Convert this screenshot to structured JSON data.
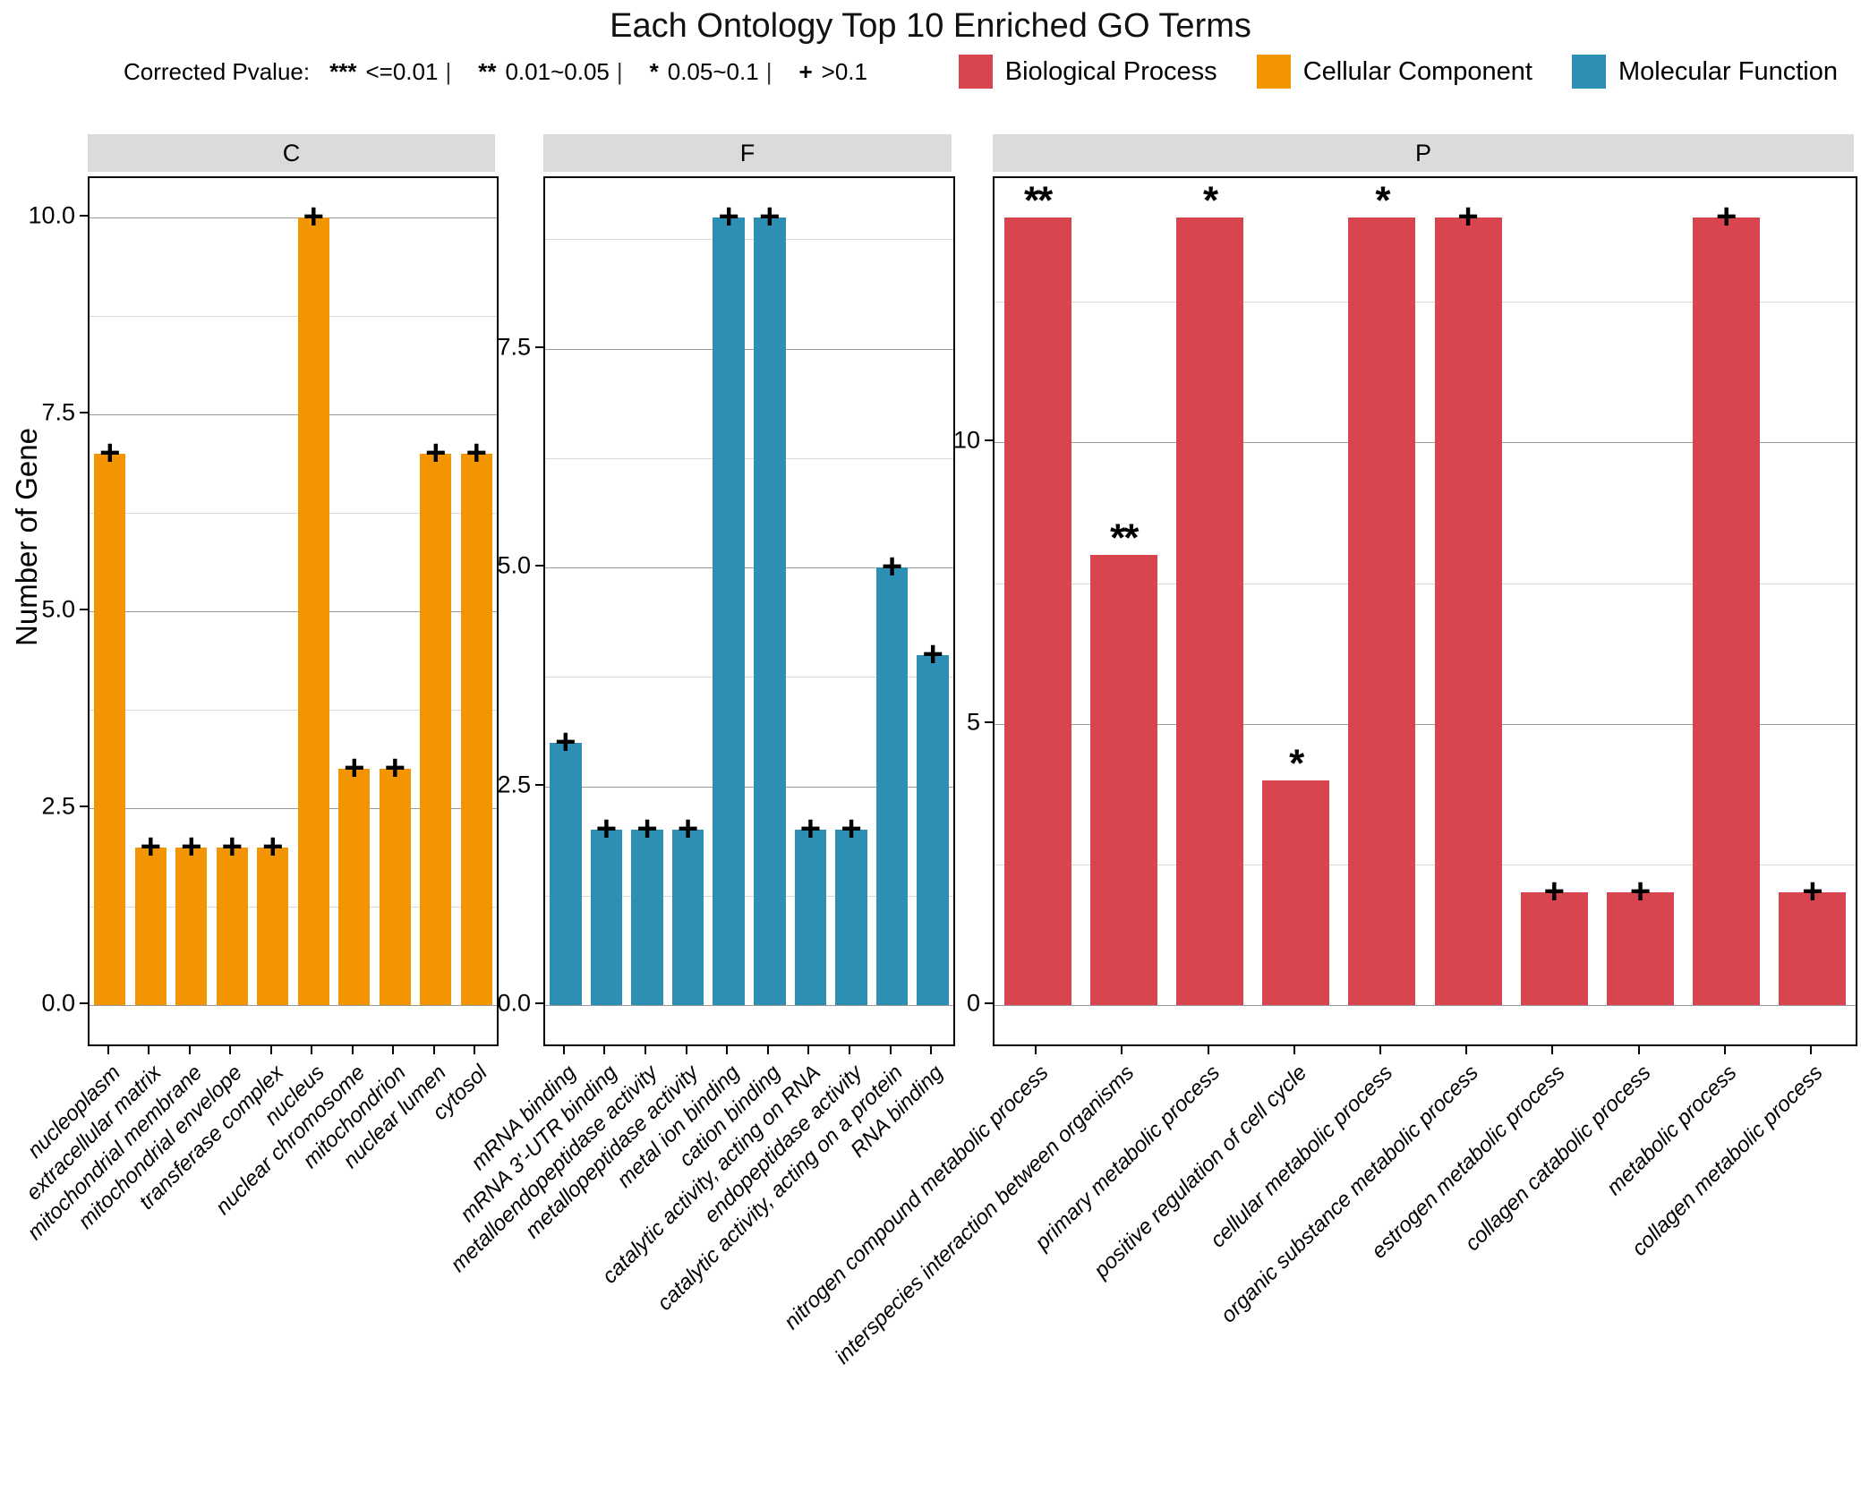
{
  "title": "Each Ontology Top 10 Enriched GO Terms",
  "y_axis_title": "Number of Gene",
  "pvalue_legend": {
    "prefix": "Corrected Pvalue:",
    "separator": "|",
    "items": [
      {
        "symbol": "***",
        "range": "<=0.01"
      },
      {
        "symbol": "**",
        "range": "0.01~0.05"
      },
      {
        "symbol": "*",
        "range": "0.05~0.1"
      },
      {
        "symbol": "+",
        "range": ">0.1"
      }
    ]
  },
  "legend": {
    "position": "top-right",
    "items": [
      {
        "label": "Biological Process",
        "color": "#D9454E"
      },
      {
        "label": "Cellular Component",
        "color": "#F39403"
      },
      {
        "label": "Molecular Function",
        "color": "#2E8FB5"
      }
    ]
  },
  "chart_data": {
    "type": "bar",
    "title": "Each Ontology Top 10 Enriched GO Terms",
    "xlabel": "",
    "ylabel": "Number of Gene",
    "grid": true,
    "significance_note": "markers above bars encode corrected p-value",
    "facets": [
      {
        "label": "C",
        "category": "Cellular Component",
        "color": "#F39403",
        "ymax": 10,
        "ticks": [
          {
            "v": 0,
            "t": "0.0"
          },
          {
            "v": 2.5,
            "t": "2.5"
          },
          {
            "v": 5,
            "t": "5.0"
          },
          {
            "v": 7.5,
            "t": "7.5"
          },
          {
            "v": 10,
            "t": "10.0"
          }
        ],
        "bars": [
          {
            "term": "nucleoplasm",
            "value": 7,
            "sig": "+"
          },
          {
            "term": "extracellular matrix",
            "value": 2,
            "sig": "+"
          },
          {
            "term": "mitochondrial membrane",
            "value": 2,
            "sig": "+"
          },
          {
            "term": "mitochondrial envelope",
            "value": 2,
            "sig": "+"
          },
          {
            "term": "transferase complex",
            "value": 2,
            "sig": "+"
          },
          {
            "term": "nucleus",
            "value": 10,
            "sig": "+"
          },
          {
            "term": "nuclear chromosome",
            "value": 3,
            "sig": "+"
          },
          {
            "term": "mitochondrion",
            "value": 3,
            "sig": "+"
          },
          {
            "term": "nuclear lumen",
            "value": 7,
            "sig": "+"
          },
          {
            "term": "cytosol",
            "value": 7,
            "sig": "+"
          }
        ]
      },
      {
        "label": "F",
        "category": "Molecular Function",
        "color": "#2E8FB5",
        "ymax": 9,
        "ticks": [
          {
            "v": 0,
            "t": "0.0"
          },
          {
            "v": 2.5,
            "t": "2.5"
          },
          {
            "v": 5,
            "t": "5.0"
          },
          {
            "v": 7.5,
            "t": "7.5"
          }
        ],
        "bars": [
          {
            "term": "mRNA binding",
            "value": 3,
            "sig": "+"
          },
          {
            "term": "mRNA 3'-UTR binding",
            "value": 2,
            "sig": "+"
          },
          {
            "term": "metalloendopeptidase activity",
            "value": 2,
            "sig": "+"
          },
          {
            "term": "metallopeptidase activity",
            "value": 2,
            "sig": "+"
          },
          {
            "term": "metal ion binding",
            "value": 9,
            "sig": "+"
          },
          {
            "term": "cation binding",
            "value": 9,
            "sig": "+"
          },
          {
            "term": "catalytic activity, acting on RNA",
            "value": 2,
            "sig": "+"
          },
          {
            "term": "endopeptidase activity",
            "value": 2,
            "sig": "+"
          },
          {
            "term": "catalytic activity, acting on a protein",
            "value": 5,
            "sig": "+"
          },
          {
            "term": "RNA binding",
            "value": 4,
            "sig": "+"
          }
        ]
      },
      {
        "label": "P",
        "category": "Biological Process",
        "color": "#D9454E",
        "ymax": 14,
        "ticks": [
          {
            "v": 0,
            "t": "0"
          },
          {
            "v": 5,
            "t": "5"
          },
          {
            "v": 10,
            "t": "10"
          }
        ],
        "bars": [
          {
            "term": "nitrogen compound metabolic process",
            "value": 14,
            "sig": "**"
          },
          {
            "term": "interspecies interaction between organisms",
            "value": 8,
            "sig": "**"
          },
          {
            "term": "primary metabolic process",
            "value": 14,
            "sig": "*"
          },
          {
            "term": "positive regulation of cell cycle",
            "value": 4,
            "sig": "*"
          },
          {
            "term": "cellular metabolic process",
            "value": 14,
            "sig": "*"
          },
          {
            "term": "organic substance metabolic process",
            "value": 14,
            "sig": "+"
          },
          {
            "term": "estrogen metabolic process",
            "value": 2,
            "sig": "+"
          },
          {
            "term": "collagen catabolic process",
            "value": 2,
            "sig": "+"
          },
          {
            "term": "metabolic process",
            "value": 14,
            "sig": "+"
          },
          {
            "term": "collagen metabolic process",
            "value": 2,
            "sig": "+"
          }
        ]
      }
    ]
  }
}
